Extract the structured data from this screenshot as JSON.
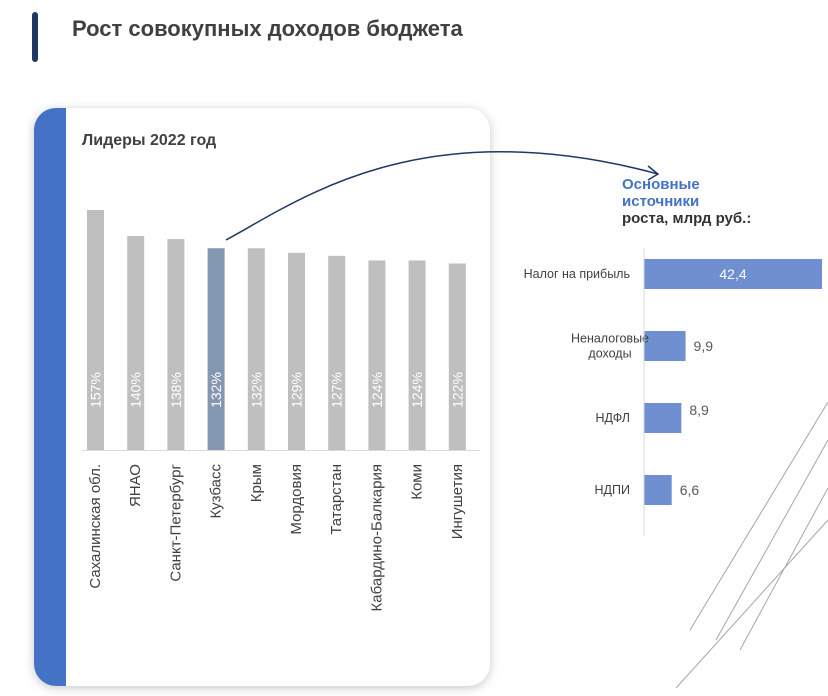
{
  "page": {
    "title": "Рост совокупных доходов бюджета"
  },
  "card": {
    "title": "Лидеры  2022 год"
  },
  "sources": {
    "title_blue_1": "Основные",
    "title_blue_2": "источники",
    "title_dark": "роста, млрд руб.:"
  },
  "colors": {
    "bar_gray": "#bfbfbf",
    "bar_highlight": "#8497b0",
    "hbar_blue": "#6f8fd0",
    "accent_blue": "#4472c4",
    "title_bar": "#1f3864"
  },
  "chart_data": [
    {
      "type": "bar",
      "title": "",
      "categories": [
        "Сахалинская обл.",
        "ЯНАО",
        "Санкт-Петербург",
        "Кузбасс",
        "Крым",
        "Мордовия",
        "Татарстан",
        "Кабардино-Балкария",
        "Коми",
        "Ингушетия"
      ],
      "values": [
        157,
        140,
        138,
        132,
        132,
        129,
        127,
        124,
        124,
        122
      ],
      "labels": [
        "157%",
        "140%",
        "138%",
        "132%",
        "132%",
        "129%",
        "127%",
        "124%",
        "124%",
        "122%"
      ],
      "highlight": "Кузбасс",
      "ylim": [
        0,
        160
      ],
      "grid": false
    },
    {
      "type": "bar",
      "orientation": "horizontal",
      "categories": [
        "Налог на прибыль",
        "Неналоговые доходы",
        "НДФЛ",
        "НДПИ"
      ],
      "values": [
        42.4,
        9.9,
        8.9,
        6.6
      ],
      "labels": [
        "42,4",
        "9,9",
        "8,9",
        "6,6"
      ],
      "grid": false
    }
  ]
}
